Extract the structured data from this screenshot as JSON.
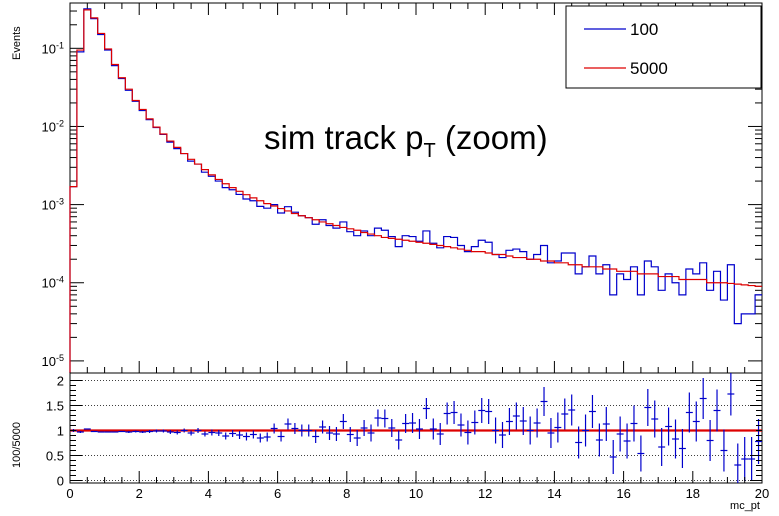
{
  "chart_data": [
    {
      "type": "line",
      "style": "step-histogram",
      "ylabel": "Events",
      "yscale": "log",
      "xlim": [
        0,
        20
      ],
      "ylim": [
        7e-06,
        0.38
      ],
      "ytick_labels": [
        {
          "base": "10",
          "exp": "-1",
          "value": 0.1
        },
        {
          "base": "10",
          "exp": "-2",
          "value": 0.01
        },
        {
          "base": "10",
          "exp": "-3",
          "value": 0.001
        },
        {
          "base": "10",
          "exp": "-4",
          "value": 0.0001
        },
        {
          "base": "10",
          "exp": "-5",
          "value": 1e-05
        }
      ],
      "annotation": {
        "text": "sim track p",
        "sub": "T",
        "suffix": " (zoom)"
      },
      "legend": {
        "placement": "top-right",
        "entries": [
          "100",
          "5000"
        ]
      },
      "bin_width": 0.2,
      "x": [
        0.1,
        0.3,
        0.5,
        0.7,
        0.9,
        1.1,
        1.3,
        1.5,
        1.7,
        1.9,
        2.1,
        2.3,
        2.5,
        2.7,
        2.9,
        3.1,
        3.3,
        3.5,
        3.7,
        3.9,
        4.1,
        4.3,
        4.5,
        4.7,
        4.9,
        5.1,
        5.3,
        5.5,
        5.7,
        5.9,
        6.1,
        6.3,
        6.5,
        6.7,
        6.9,
        7.1,
        7.3,
        7.5,
        7.7,
        7.9,
        8.1,
        8.3,
        8.5,
        8.7,
        8.9,
        9.1,
        9.3,
        9.5,
        9.7,
        9.9,
        10.1,
        10.3,
        10.5,
        10.7,
        10.9,
        11.1,
        11.3,
        11.5,
        11.7,
        11.9,
        12.1,
        12.3,
        12.5,
        12.7,
        12.9,
        13.1,
        13.3,
        13.5,
        13.7,
        13.9,
        14.1,
        14.3,
        14.5,
        14.7,
        14.9,
        15.1,
        15.3,
        15.5,
        15.7,
        15.9,
        16.1,
        16.3,
        16.5,
        16.7,
        16.9,
        17.1,
        17.3,
        17.5,
        17.7,
        17.9,
        18.1,
        18.3,
        18.5,
        18.7,
        18.9,
        19.1,
        19.3,
        19.5,
        19.7,
        19.9
      ],
      "series": [
        {
          "name": "100",
          "color": "#0000cc",
          "values": [
            0.0017,
            0.09,
            0.32,
            0.24,
            0.15,
            0.095,
            0.06,
            0.041,
            0.029,
            0.021,
            0.016,
            0.0122,
            0.0097,
            0.0079,
            0.0063,
            0.0052,
            0.0045,
            0.0036,
            0.0033,
            0.0026,
            0.0023,
            0.002,
            0.00165,
            0.00155,
            0.00135,
            0.00118,
            0.00112,
            0.00095,
            0.0009,
            0.001,
            0.00078,
            0.00094,
            0.0008,
            0.00072,
            0.00068,
            0.00056,
            0.00064,
            0.00054,
            0.0005,
            0.0006,
            0.00045,
            0.0004,
            0.00046,
            0.0004,
            0.0005,
            0.00047,
            0.00039,
            0.00029,
            0.0004,
            0.00039,
            0.00034,
            0.00046,
            0.00032,
            0.00028,
            0.00039,
            0.00038,
            0.0003,
            0.00025,
            0.00029,
            0.00035,
            0.00033,
            0.00023,
            0.00021,
            0.00026,
            0.00027,
            0.00025,
            0.0002,
            0.00023,
            0.0003,
            0.00018,
            0.00019,
            0.00024,
            0.00024,
            0.00013,
            0.00016,
            0.00022,
            0.00013,
            0.00017,
            7e-05,
            0.00013,
            0.00011,
            0.00016,
            7e-05,
            0.00019,
            0.00016,
            8e-05,
            0.00013,
            0.0001,
            7e-05,
            0.00015,
            0.00013,
            0.00018,
            8e-05,
            0.00014,
            6e-05,
            0.00017,
            3e-05,
            4e-05,
            4e-05,
            7e-05
          ]
        },
        {
          "name": "5000",
          "color": "#dd0000",
          "values": [
            0.0017,
            0.095,
            0.31,
            0.245,
            0.155,
            0.098,
            0.062,
            0.042,
            0.03,
            0.0215,
            0.0165,
            0.0125,
            0.0098,
            0.008,
            0.0065,
            0.0054,
            0.0045,
            0.0038,
            0.0033,
            0.0028,
            0.0024,
            0.0021,
            0.00185,
            0.00165,
            0.00148,
            0.00134,
            0.00122,
            0.00112,
            0.00103,
            0.00096,
            0.00089,
            0.00083,
            0.00077,
            0.00072,
            0.00068,
            0.00064,
            0.0006,
            0.00057,
            0.00054,
            0.00051,
            0.00049,
            0.00047,
            0.00044,
            0.00042,
            0.0004,
            0.00038,
            0.00037,
            0.00036,
            0.00035,
            0.00034,
            0.00033,
            0.00032,
            0.00031,
            0.0003,
            0.00029,
            0.00028,
            0.00027,
            0.00026,
            0.00025,
            0.00025,
            0.00024,
            0.00023,
            0.00023,
            0.00022,
            0.00021,
            0.00021,
            0.0002,
            0.0002,
            0.00019,
            0.00019,
            0.00018,
            0.00018,
            0.00017,
            0.00017,
            0.00016,
            0.00016,
            0.00016,
            0.00015,
            0.00015,
            0.00014,
            0.00014,
            0.00014,
            0.00013,
            0.00013,
            0.00013,
            0.00012,
            0.00012,
            0.00012,
            0.00011,
            0.00011,
            0.00011,
            0.00011,
            0.0001,
            0.0001,
            0.0001,
            9.8e-05,
            9.6e-05,
            9.4e-05,
            9.2e-05,
            9e-05
          ]
        }
      ]
    },
    {
      "type": "scatter",
      "style": "ratio-with-errorbars",
      "xlabel": "mc_pt",
      "ylabel": "100/5000",
      "xlim": [
        0,
        20
      ],
      "ylim": [
        -0.05,
        2.15
      ],
      "x_ticks": [
        0,
        2,
        4,
        6,
        8,
        10,
        12,
        14,
        16,
        18,
        20
      ],
      "x_tick_labels": [
        "0",
        "2",
        "4",
        "6",
        "8",
        "10",
        "12",
        "14",
        "16",
        "18",
        "20"
      ],
      "y_ticks": [
        0,
        0.5,
        1,
        1.5,
        2
      ],
      "y_tick_labels": [
        "0",
        "0.5",
        "1",
        "1.5",
        "2"
      ],
      "grid": "dotted horizontal at y=0, 0.5, 1.5, 2",
      "reference_line": {
        "y": 1,
        "color": "#dd0000"
      },
      "marker_color": "#0000cc",
      "x": [
        0.1,
        0.3,
        0.5,
        0.7,
        0.9,
        1.1,
        1.3,
        1.5,
        1.7,
        1.9,
        2.1,
        2.3,
        2.5,
        2.7,
        2.9,
        3.1,
        3.3,
        3.5,
        3.7,
        3.9,
        4.1,
        4.3,
        4.5,
        4.7,
        4.9,
        5.1,
        5.3,
        5.5,
        5.7,
        5.9,
        6.1,
        6.3,
        6.5,
        6.7,
        6.9,
        7.1,
        7.3,
        7.5,
        7.7,
        7.9,
        8.1,
        8.3,
        8.5,
        8.7,
        8.9,
        9.1,
        9.3,
        9.5,
        9.7,
        9.9,
        10.1,
        10.3,
        10.5,
        10.7,
        10.9,
        11.1,
        11.3,
        11.5,
        11.7,
        11.9,
        12.1,
        12.3,
        12.5,
        12.7,
        12.9,
        13.1,
        13.3,
        13.5,
        13.7,
        13.9,
        14.1,
        14.3,
        14.5,
        14.7,
        14.9,
        15.1,
        15.3,
        15.5,
        15.7,
        15.9,
        16.1,
        16.3,
        16.5,
        16.7,
        16.9,
        17.1,
        17.3,
        17.5,
        17.7,
        17.9,
        18.1,
        18.3,
        18.5,
        18.7,
        18.9,
        19.1,
        19.3,
        19.5,
        19.7,
        19.9
      ],
      "y": [
        1.0,
        0.97,
        1.03,
        0.98,
        0.97,
        0.97,
        0.97,
        0.98,
        0.97,
        0.98,
        0.97,
        0.98,
        0.99,
        0.99,
        0.97,
        0.96,
        1.0,
        0.95,
        1.0,
        0.93,
        0.96,
        0.95,
        0.89,
        0.94,
        0.91,
        0.88,
        0.92,
        0.85,
        0.87,
        1.04,
        0.88,
        1.13,
        1.04,
        1.0,
        1.0,
        0.88,
        1.07,
        0.95,
        0.93,
        1.18,
        0.92,
        0.85,
        1.05,
        0.95,
        1.25,
        1.24,
        1.05,
        0.81,
        1.14,
        1.15,
        1.03,
        1.44,
        1.03,
        0.93,
        1.34,
        1.36,
        1.11,
        0.96,
        1.16,
        1.4,
        1.38,
        1.0,
        0.91,
        1.18,
        1.29,
        1.19,
        1.0,
        1.15,
        1.58,
        0.95,
        1.06,
        1.33,
        1.41,
        0.76,
        1.0,
        1.38,
        0.81,
        1.13,
        0.47,
        0.93,
        0.79,
        1.14,
        0.54,
        1.46,
        1.23,
        0.67,
        1.08,
        0.83,
        0.64,
        1.36,
        1.18,
        1.64,
        0.8,
        1.4,
        0.6,
        1.73,
        0.31,
        0.43,
        0.43,
        0.78
      ],
      "err": [
        0.03,
        0.02,
        0.01,
        0.01,
        0.01,
        0.01,
        0.01,
        0.01,
        0.02,
        0.02,
        0.02,
        0.03,
        0.03,
        0.03,
        0.04,
        0.04,
        0.04,
        0.05,
        0.05,
        0.05,
        0.06,
        0.06,
        0.07,
        0.07,
        0.08,
        0.08,
        0.08,
        0.09,
        0.09,
        0.1,
        0.1,
        0.11,
        0.11,
        0.12,
        0.12,
        0.13,
        0.13,
        0.14,
        0.14,
        0.15,
        0.15,
        0.16,
        0.16,
        0.17,
        0.17,
        0.18,
        0.18,
        0.19,
        0.19,
        0.2,
        0.2,
        0.21,
        0.21,
        0.22,
        0.22,
        0.23,
        0.23,
        0.24,
        0.24,
        0.25,
        0.25,
        0.26,
        0.26,
        0.27,
        0.27,
        0.28,
        0.28,
        0.29,
        0.29,
        0.3,
        0.3,
        0.31,
        0.31,
        0.32,
        0.32,
        0.33,
        0.33,
        0.34,
        0.34,
        0.35,
        0.35,
        0.36,
        0.36,
        0.37,
        0.37,
        0.38,
        0.38,
        0.39,
        0.39,
        0.4,
        0.4,
        0.41,
        0.41,
        0.42,
        0.42,
        0.43,
        0.43,
        0.44,
        0.44,
        0.45
      ]
    }
  ]
}
